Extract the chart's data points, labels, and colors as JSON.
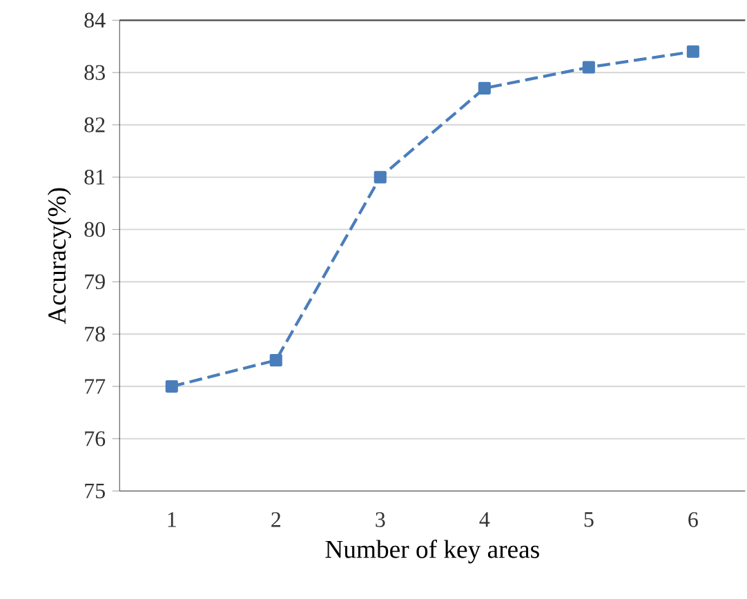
{
  "chart_data": {
    "type": "line",
    "xlabel": "Number of key areas",
    "ylabel": "Accuracy(%)",
    "categories": [
      "1",
      "2",
      "3",
      "4",
      "5",
      "6"
    ],
    "series": [
      {
        "color": "#4a7ebb",
        "values": [
          77,
          77.5,
          81,
          82.7,
          83.1,
          83.4
        ]
      }
    ],
    "ylim": [
      75,
      84
    ],
    "yticks": [
      75,
      76,
      77,
      78,
      79,
      80,
      81,
      82,
      83,
      84
    ],
    "grid": "y",
    "marker": "square",
    "line_style": "dashed"
  }
}
